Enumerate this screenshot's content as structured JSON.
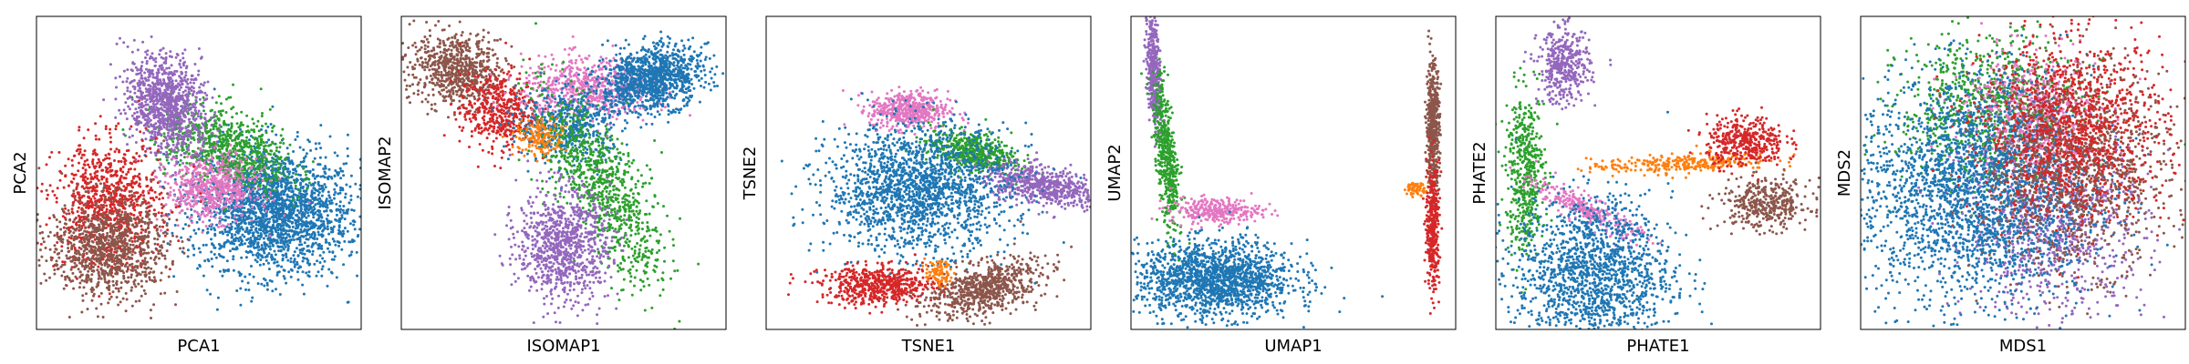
{
  "colors": {
    "blue": "#1f77b4",
    "orange": "#ff7f0e",
    "green": "#2ca02c",
    "red": "#d62728",
    "purple": "#9467bd",
    "brown": "#8c564b",
    "pink": "#e377c2"
  },
  "chart_data": [
    {
      "type": "scatter",
      "xlabel": "PCA1",
      "ylabel": "PCA2",
      "grid": false,
      "ticks": "none",
      "legend": "none",
      "xlim": [
        0,
        1
      ],
      "ylim": [
        0,
        1
      ],
      "series": [
        {
          "color": "blue",
          "points": 2200,
          "center": [
            0.73,
            0.38
          ],
          "spread": [
            0.12,
            0.1
          ],
          "rotation": -0.15
        },
        {
          "color": "green",
          "points": 800,
          "center": [
            0.58,
            0.58
          ],
          "spread": [
            0.11,
            0.06
          ],
          "rotation": -0.35
        },
        {
          "color": "pink",
          "points": 600,
          "center": [
            0.54,
            0.45
          ],
          "spread": [
            0.07,
            0.05
          ]
        },
        {
          "color": "purple",
          "points": 1000,
          "center": [
            0.4,
            0.72
          ],
          "spread": [
            0.06,
            0.08
          ],
          "rotation": 0.3
        },
        {
          "color": "red",
          "points": 900,
          "center": [
            0.22,
            0.4
          ],
          "spread": [
            0.08,
            0.1
          ]
        },
        {
          "color": "brown",
          "points": 1000,
          "center": [
            0.22,
            0.26
          ],
          "spread": [
            0.09,
            0.08
          ]
        }
      ]
    },
    {
      "type": "scatter",
      "xlabel": "ISOMAP1",
      "ylabel": "ISOMAP2",
      "grid": false,
      "ticks": "none",
      "legend": "none",
      "xlim": [
        0,
        1
      ],
      "ylim": [
        0,
        1
      ],
      "series": [
        {
          "color": "brown",
          "points": 700,
          "center": [
            0.17,
            0.83
          ],
          "spread": [
            0.07,
            0.06
          ],
          "rotation": -0.3
        },
        {
          "color": "red",
          "points": 500,
          "center": [
            0.3,
            0.7
          ],
          "spread": [
            0.06,
            0.06
          ]
        },
        {
          "color": "pink",
          "points": 600,
          "center": [
            0.57,
            0.77
          ],
          "spread": [
            0.1,
            0.05
          ]
        },
        {
          "color": "blue",
          "points": 1100,
          "center": [
            0.77,
            0.8
          ],
          "spread": [
            0.08,
            0.05
          ],
          "rotation": 0.25
        },
        {
          "color": "blue",
          "points": 500,
          "center": [
            0.52,
            0.65
          ],
          "spread": [
            0.08,
            0.06
          ]
        },
        {
          "color": "green",
          "points": 900,
          "center": [
            0.62,
            0.45
          ],
          "spread": [
            0.06,
            0.17
          ],
          "rotation": 0.5
        },
        {
          "color": "purple",
          "points": 900,
          "center": [
            0.5,
            0.27
          ],
          "spread": [
            0.07,
            0.09
          ]
        },
        {
          "color": "orange",
          "points": 150,
          "center": [
            0.43,
            0.61
          ],
          "spread": [
            0.04,
            0.03
          ]
        }
      ]
    },
    {
      "type": "scatter",
      "xlabel": "TSNE1",
      "ylabel": "TSNE2",
      "grid": false,
      "ticks": "none",
      "legend": "none",
      "xlim": [
        0,
        1
      ],
      "ylim": [
        0,
        1
      ],
      "series": [
        {
          "color": "pink",
          "points": 500,
          "center": [
            0.44,
            0.7
          ],
          "spread": [
            0.06,
            0.03
          ]
        },
        {
          "color": "green",
          "points": 500,
          "center": [
            0.63,
            0.57
          ],
          "spread": [
            0.07,
            0.03
          ],
          "rotation": -0.2
        },
        {
          "color": "purple",
          "points": 600,
          "center": [
            0.85,
            0.46
          ],
          "spread": [
            0.09,
            0.03
          ],
          "rotation": -0.2
        },
        {
          "color": "blue",
          "points": 1800,
          "center": [
            0.47,
            0.45
          ],
          "spread": [
            0.14,
            0.1
          ]
        },
        {
          "color": "red",
          "points": 600,
          "center": [
            0.35,
            0.14
          ],
          "spread": [
            0.09,
            0.03
          ]
        },
        {
          "color": "brown",
          "points": 700,
          "center": [
            0.67,
            0.13
          ],
          "spread": [
            0.09,
            0.04
          ],
          "rotation": 0.3
        },
        {
          "color": "orange",
          "points": 80,
          "center": [
            0.53,
            0.18
          ],
          "spread": [
            0.02,
            0.02
          ]
        }
      ]
    },
    {
      "type": "scatter",
      "xlabel": "UMAP1",
      "ylabel": "UMAP2",
      "grid": false,
      "ticks": "none",
      "legend": "none",
      "xlim": [
        0,
        1
      ],
      "ylim": [
        0,
        1
      ],
      "series": [
        {
          "color": "purple",
          "points": 400,
          "center": [
            0.07,
            0.84
          ],
          "spread": [
            0.01,
            0.1
          ],
          "rotation": 0.05
        },
        {
          "color": "green",
          "points": 500,
          "center": [
            0.11,
            0.55
          ],
          "spread": [
            0.015,
            0.13
          ],
          "rotation": 0.1
        },
        {
          "color": "pink",
          "points": 300,
          "center": [
            0.26,
            0.38
          ],
          "spread": [
            0.07,
            0.02
          ]
        },
        {
          "color": "blue",
          "points": 1600,
          "center": [
            0.26,
            0.16
          ],
          "spread": [
            0.12,
            0.06
          ]
        },
        {
          "color": "orange",
          "points": 60,
          "center": [
            0.88,
            0.45
          ],
          "spread": [
            0.02,
            0.01
          ]
        },
        {
          "color": "brown",
          "points": 500,
          "center": [
            0.93,
            0.65
          ],
          "spread": [
            0.01,
            0.1
          ]
        },
        {
          "color": "red",
          "points": 400,
          "center": [
            0.93,
            0.33
          ],
          "spread": [
            0.01,
            0.1
          ]
        }
      ]
    },
    {
      "type": "scatter",
      "xlabel": "PHATE1",
      "ylabel": "PHATE2",
      "grid": false,
      "ticks": "none",
      "legend": "none",
      "xlim": [
        0,
        1
      ],
      "ylim": [
        0,
        1
      ],
      "series": [
        {
          "color": "purple",
          "points": 400,
          "center": [
            0.21,
            0.84
          ],
          "spread": [
            0.04,
            0.06
          ]
        },
        {
          "color": "green",
          "points": 500,
          "center": [
            0.09,
            0.5
          ],
          "spread": [
            0.03,
            0.13
          ]
        },
        {
          "color": "pink",
          "points": 300,
          "center": [
            0.28,
            0.38
          ],
          "spread": [
            0.09,
            0.02
          ],
          "rotation": -0.5
        },
        {
          "color": "blue",
          "points": 1500,
          "center": [
            0.3,
            0.18
          ],
          "spread": [
            0.12,
            0.12
          ]
        },
        {
          "color": "orange",
          "points": 300,
          "center": [
            0.57,
            0.53
          ],
          "spread": [
            0.14,
            0.015
          ],
          "rotation": 0.05
        },
        {
          "color": "red",
          "points": 400,
          "center": [
            0.77,
            0.6
          ],
          "spread": [
            0.06,
            0.04
          ]
        },
        {
          "color": "brown",
          "points": 400,
          "center": [
            0.83,
            0.4
          ],
          "spread": [
            0.07,
            0.04
          ]
        }
      ]
    },
    {
      "type": "scatter",
      "xlabel": "MDS1",
      "ylabel": "MDS2",
      "grid": false,
      "ticks": "none",
      "legend": "none",
      "xlim": [
        0,
        1
      ],
      "ylim": [
        0,
        1
      ],
      "series": [
        {
          "color": "green",
          "points": 900,
          "center": [
            0.4,
            0.7
          ],
          "spread": [
            0.14,
            0.12
          ]
        },
        {
          "color": "purple",
          "points": 900,
          "center": [
            0.6,
            0.33
          ],
          "spread": [
            0.14,
            0.14
          ]
        },
        {
          "color": "pink",
          "points": 600,
          "center": [
            0.53,
            0.68
          ],
          "spread": [
            0.1,
            0.1
          ]
        },
        {
          "color": "blue",
          "points": 2600,
          "center": [
            0.35,
            0.45
          ],
          "spread": [
            0.18,
            0.18
          ]
        },
        {
          "color": "brown",
          "points": 1200,
          "center": [
            0.67,
            0.52
          ],
          "spread": [
            0.14,
            0.16
          ]
        },
        {
          "color": "red",
          "points": 1200,
          "center": [
            0.66,
            0.64
          ],
          "spread": [
            0.14,
            0.14
          ]
        }
      ]
    }
  ]
}
